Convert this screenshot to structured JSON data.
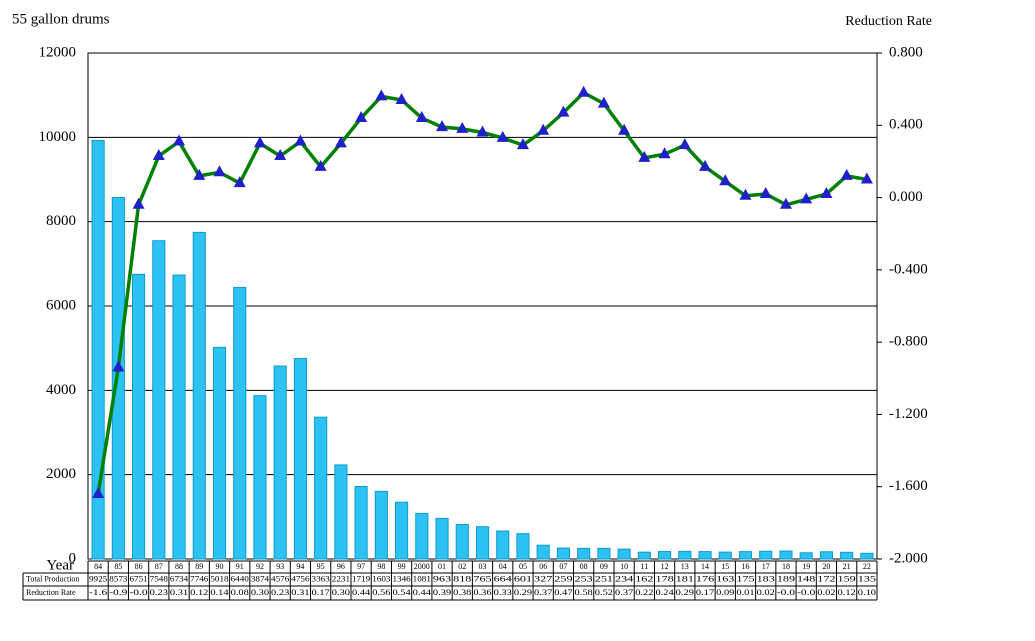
{
  "chart_data": {
    "type": "bar",
    "ylabel": "55 gallon drums",
    "y2label": "Reduction Rate",
    "xlabel": "Year",
    "categories": [
      "84",
      "85",
      "86",
      "87",
      "88",
      "89",
      "90",
      "91",
      "92",
      "93",
      "94",
      "95",
      "96",
      "97",
      "98",
      "99",
      "2000",
      "01",
      "02",
      "03",
      "04",
      "05",
      "06",
      "07",
      "08",
      "09",
      "10",
      "11",
      "12",
      "13",
      "14",
      "15",
      "16",
      "17",
      "18",
      "19",
      "20",
      "21",
      "22"
    ],
    "series": [
      {
        "name": "Total Production",
        "type": "bar",
        "color": "#2cc3f3",
        "edge": "#1199cc",
        "values": [
          9925,
          8573,
          6751,
          7548,
          6734,
          7746,
          5018,
          6440,
          3874,
          4576,
          4756,
          3363,
          2231,
          1719,
          1603,
          1346,
          1081,
          963,
          818,
          765,
          664,
          601,
          327,
          259,
          253,
          251,
          234,
          162,
          178,
          181,
          176,
          163,
          175,
          183,
          189,
          148,
          172,
          159,
          135
        ]
      },
      {
        "name": "Reduction Rate",
        "type": "line",
        "axis": "y2",
        "color": "#008000",
        "marker_color": "#2020c8",
        "values": [
          -1.64,
          -0.94,
          -0.04,
          0.23,
          0.31,
          0.12,
          0.14,
          0.08,
          0.3,
          0.23,
          0.31,
          0.17,
          0.3,
          0.44,
          0.56,
          0.54,
          0.44,
          0.39,
          0.38,
          0.36,
          0.33,
          0.29,
          0.37,
          0.47,
          0.58,
          0.52,
          0.37,
          0.22,
          0.24,
          0.29,
          0.17,
          0.09,
          0.01,
          0.02,
          -0.04,
          -0.01,
          0.02,
          0.12,
          0.1
        ],
        "value_labels": [
          "-1.6",
          "-0.9",
          "-0.0",
          "0.23",
          "0.31",
          "0.12",
          "0.14",
          "0.08",
          "0.30",
          "0.23",
          "0.31",
          "0.17",
          "0.30",
          "0.44",
          "0.56",
          "0.54",
          "0.44",
          "0.39",
          "0.38",
          "0.36",
          "0.33",
          "0.29",
          "0.37",
          "0.47",
          "0.58",
          "0.52",
          "0.37",
          "0.22",
          "0.24",
          "0.29",
          "0.17",
          "0.09",
          "0.01",
          "0.02",
          "-0.0",
          "-0.0",
          "0.02",
          "0.12",
          "0.10"
        ]
      }
    ],
    "ylim": [
      0,
      12000
    ],
    "yticks": [
      0,
      2000,
      4000,
      6000,
      8000,
      10000,
      12000
    ],
    "y2lim": [
      -2,
      0.8
    ],
    "y2ticks": [
      {
        "value": 0.8,
        "label": "0.800"
      },
      {
        "value": 0.4,
        "label": "0.400"
      },
      {
        "value": 0,
        "label": "0.000"
      },
      {
        "value": -0.4,
        "label": "-0.400"
      },
      {
        "value": -0.8,
        "label": "-0.800"
      },
      {
        "value": -1.2,
        "label": "-1.200"
      },
      {
        "value": -1.6,
        "label": "-1.600"
      },
      {
        "value": -2,
        "label": "-2.000"
      }
    ],
    "grid": true
  }
}
